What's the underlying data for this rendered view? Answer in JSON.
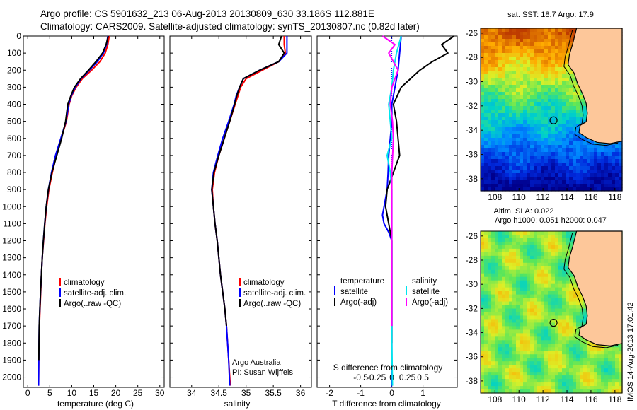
{
  "header": {
    "line1": "Argo profile: CS 5901632_213 06-Aug-2013 20130809_630 33.186S 112.881E",
    "line2": "Climatology: CARS2009. Satellite-adjusted climatology: synTS_20130807.nc (0.82d later)"
  },
  "colors": {
    "climatology": "#ff0000",
    "satellite_adj": "#0000ff",
    "argo": "#000000",
    "sat_salinity": "#00e5ee",
    "argo_salinity_adj": "#ff00ff"
  },
  "legends": {
    "profile": [
      "climatology",
      "satellite-adj. clim.",
      "Argo(..raw -QC)"
    ],
    "diff_temperature_title": "temperature",
    "diff_salinity_title": "salinity",
    "diff_items": [
      "satellite",
      "Argo(-adj)"
    ]
  },
  "annotations": {
    "institution": "Argo Australia",
    "pi": "PI: Susan Wijffels",
    "footer": "IMOS 14-Aug-2013 17:01:42"
  },
  "map_labels": {
    "sst_title": "sat. SST: 18.7 Argo: 17.9",
    "sla_title_1": "Altim. SLA: 0.022",
    "sla_title_2": "Argo h1000: 0.051 h2000: 0.047"
  },
  "chart_data": [
    {
      "type": "line",
      "xlabel": "temperature (deg C)",
      "ylabel": "",
      "xlim": [
        -1,
        31
      ],
      "ylim": [
        2060,
        0
      ],
      "xticks": [
        0,
        5,
        10,
        15,
        20,
        25,
        30
      ],
      "yticks": [
        0,
        100,
        200,
        300,
        400,
        500,
        600,
        700,
        800,
        900,
        1000,
        1100,
        1200,
        1300,
        1400,
        1500,
        1600,
        1700,
        1800,
        1900,
        2000
      ],
      "series": [
        {
          "name": "climatology",
          "color": "#ff0000",
          "x": [
            18.5,
            18.2,
            17.6,
            16.4,
            14.5,
            12.4,
            11.0,
            10.0,
            9.4,
            8.8,
            7.6,
            6.5,
            5.6,
            4.8,
            4.3,
            3.9,
            3.6,
            3.3,
            3.1,
            2.95,
            2.8,
            2.65,
            2.5,
            2.45
          ],
          "y": [
            0,
            50,
            100,
            150,
            200,
            250,
            300,
            350,
            400,
            500,
            600,
            700,
            800,
            900,
            1000,
            1100,
            1200,
            1300,
            1400,
            1500,
            1600,
            1700,
            1900,
            2050
          ]
        },
        {
          "name": "satellite-adj. clim.",
          "color": "#0000ff",
          "x": [
            18.2,
            17.9,
            17.2,
            15.8,
            14.0,
            12.1,
            10.8,
            9.9,
            9.3,
            8.7,
            7.5,
            6.3,
            5.4,
            4.7,
            4.2,
            3.85,
            3.55,
            3.3,
            3.1,
            2.9,
            2.75,
            2.6,
            2.5,
            2.45
          ],
          "y": [
            0,
            50,
            100,
            150,
            200,
            250,
            300,
            350,
            400,
            500,
            600,
            700,
            800,
            900,
            1000,
            1100,
            1200,
            1300,
            1400,
            1500,
            1600,
            1700,
            1900,
            2050
          ]
        },
        {
          "name": "Argo(..raw -QC)",
          "color": "#000000",
          "x": [
            18.3,
            17.8,
            17.0,
            15.5,
            13.8,
            12.0,
            10.6,
            9.8,
            9.1,
            8.6,
            7.7,
            6.6,
            5.5,
            4.7,
            4.2,
            3.85,
            3.55,
            3.3,
            3.1,
            2.9,
            2.75,
            2.6,
            2.5
          ],
          "y": [
            0,
            50,
            100,
            150,
            200,
            250,
            300,
            350,
            400,
            500,
            600,
            700,
            800,
            900,
            1000,
            1100,
            1200,
            1300,
            1400,
            1500,
            1600,
            1700,
            1900
          ]
        }
      ]
    },
    {
      "type": "line",
      "xlabel": "salinity",
      "ylabel": "",
      "xlim": [
        33.6,
        36.2
      ],
      "ylim": [
        2060,
        0
      ],
      "xticks": [
        34,
        34.5,
        35,
        35.5,
        36
      ],
      "series": [
        {
          "name": "climatology",
          "color": "#ff0000",
          "x": [
            35.7,
            35.7,
            35.72,
            35.6,
            35.3,
            35.0,
            34.9,
            34.85,
            34.8,
            34.7,
            34.6,
            34.5,
            34.42,
            34.38,
            34.4,
            34.43,
            34.47,
            34.5,
            34.53,
            34.57,
            34.61,
            34.64,
            34.68,
            34.71
          ],
          "y": [
            0,
            50,
            100,
            150,
            200,
            250,
            300,
            350,
            400,
            500,
            600,
            700,
            800,
            900,
            1000,
            1100,
            1200,
            1300,
            1400,
            1500,
            1600,
            1700,
            1900,
            2050
          ]
        },
        {
          "name": "satellite-adj. clim.",
          "color": "#0000ff",
          "x": [
            35.75,
            35.75,
            35.75,
            35.6,
            35.25,
            34.95,
            34.88,
            34.82,
            34.78,
            34.68,
            34.57,
            34.48,
            34.4,
            34.37,
            34.4,
            34.43,
            34.47,
            34.5,
            34.53,
            34.57,
            34.61,
            34.64,
            34.68,
            34.7
          ],
          "y": [
            0,
            50,
            100,
            150,
            200,
            250,
            300,
            350,
            400,
            500,
            600,
            700,
            800,
            900,
            1000,
            1100,
            1200,
            1300,
            1400,
            1500,
            1600,
            1700,
            1900,
            2050
          ]
        },
        {
          "name": "Argo(..raw -QC)",
          "color": "#000000",
          "x": [
            35.65,
            35.6,
            35.7,
            35.6,
            35.25,
            34.95,
            34.88,
            34.83,
            34.79,
            34.7,
            34.6,
            34.5,
            34.41,
            34.37,
            34.4,
            34.43,
            34.47,
            34.5,
            34.53,
            34.57,
            34.61,
            34.64
          ],
          "y": [
            0,
            50,
            100,
            150,
            200,
            250,
            300,
            350,
            400,
            500,
            600,
            700,
            800,
            900,
            1000,
            1100,
            1200,
            1300,
            1400,
            1500,
            1600,
            1700
          ]
        }
      ]
    },
    {
      "type": "line",
      "xlabel": "T difference from climatology",
      "xlabel2": "S difference from climatology",
      "xlim": [
        -2.4,
        2.1
      ],
      "ylim": [
        2060,
        0
      ],
      "xticks": [
        -2,
        -1,
        0,
        1
      ],
      "xticks_salinity": [
        -0.5,
        -0.25,
        0,
        0.25,
        0.5
      ],
      "series": [
        {
          "name": "temperature satellite",
          "color": "#0000ff",
          "x": [
            0.3,
            0.25,
            0.2,
            0.1,
            0.0,
            0.0,
            -0.05,
            -0.1,
            -0.12,
            -0.15,
            -0.2,
            -0.25,
            -0.3,
            -0.25,
            -0.1,
            0.0,
            0.0,
            0.0,
            0.0,
            0.0,
            0.0,
            0.0
          ],
          "y": [
            0,
            100,
            200,
            300,
            400,
            500,
            600,
            700,
            800,
            900,
            950,
            1000,
            1050,
            1100,
            1150,
            1200,
            1300,
            1400,
            1600,
            1800,
            1900,
            2050
          ]
        },
        {
          "name": "temperature Argo(-adj)",
          "color": "#000000",
          "x": [
            2.0,
            1.6,
            1.8,
            1.3,
            0.9,
            0.3,
            0.05,
            0.15,
            0.2,
            0.25,
            0.05,
            -0.15,
            -0.2,
            -0.1,
            0.0,
            0.0,
            0.0,
            0.0
          ],
          "y": [
            0,
            50,
            100,
            150,
            200,
            300,
            400,
            500,
            600,
            700,
            800,
            900,
            1000,
            1100,
            1200,
            1400,
            1600,
            1800
          ]
        },
        {
          "name": "salinity satellite",
          "color": "#00e5ee",
          "x": [
            0.3,
            0.15,
            0.05,
            0.0,
            -0.1,
            -0.05,
            0.0,
            -0.15,
            -0.05,
            0.0,
            0.0,
            0.0,
            0.0,
            0.0,
            0.0,
            0.02
          ],
          "y": [
            0,
            100,
            200,
            300,
            400,
            500,
            600,
            700,
            800,
            900,
            1000,
            1200,
            1400,
            1600,
            1800,
            2050
          ]
        },
        {
          "name": "salinity Argo(-adj)",
          "color": "#ff00ff",
          "x": [
            -0.3,
            0.1,
            -0.1,
            0.2,
            0.0,
            -0.05,
            0.02,
            0.05,
            0.0,
            0.0,
            0.0,
            0.0,
            0.0
          ],
          "y": [
            0,
            50,
            100,
            200,
            300,
            400,
            500,
            600,
            800,
            1000,
            1200,
            1400,
            1700
          ]
        }
      ]
    },
    {
      "type": "heatmap",
      "title": "sat. SST: 18.7 Argo: 17.9",
      "xlim": [
        106.8,
        118.6
      ],
      "ylim": [
        -39,
        -25.6
      ],
      "xticks": [
        108,
        110,
        112,
        114,
        116,
        118
      ],
      "yticks": [
        -26,
        -28,
        -30,
        -32,
        -34,
        -36,
        -38
      ],
      "argo_position": {
        "lon": 112.881,
        "lat": -33.186
      }
    },
    {
      "type": "heatmap",
      "title": "Altim. SLA: 0.022",
      "xlim": [
        106.8,
        118.6
      ],
      "ylim": [
        -39,
        -25.6
      ],
      "xticks": [
        108,
        110,
        112,
        114,
        116,
        118
      ],
      "yticks": [
        -26,
        -28,
        -30,
        -32,
        -34,
        -36,
        -38
      ],
      "argo_position": {
        "lon": 112.881,
        "lat": -33.186
      }
    }
  ]
}
